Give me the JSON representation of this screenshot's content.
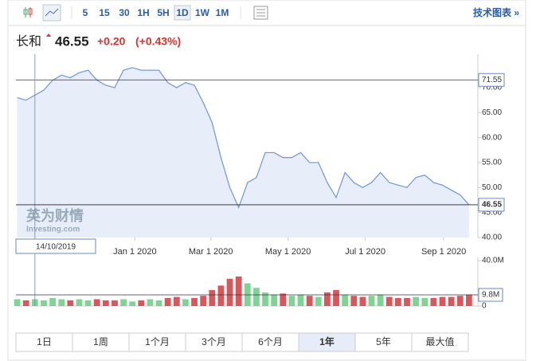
{
  "toolbar": {
    "intervals": [
      "5",
      "15",
      "30",
      "1H",
      "5H",
      "1D",
      "1W",
      "1M"
    ],
    "active": "1D",
    "tech_chart": "技术图表 »"
  },
  "header": {
    "name": "长和",
    "price": "46.55",
    "change": "+0.20",
    "change_pct": "(+0.43%)"
  },
  "watermark": {
    "cn": "英为财情",
    "en": "Investing.com"
  },
  "chart_data": [
    {
      "type": "line",
      "color": "#7a9bd3",
      "fill": "#e8eef9",
      "x": [
        "2019-09-30",
        "2019-10-07",
        "2019-10-14",
        "2019-10-21",
        "2019-10-28",
        "2019-11-04",
        "2019-11-11",
        "2019-11-18",
        "2019-11-25",
        "2019-12-02",
        "2019-12-09",
        "2019-12-16",
        "2019-12-23",
        "2019-12-30",
        "2020-01-06",
        "2020-01-13",
        "2020-01-20",
        "2020-01-27",
        "2020-02-03",
        "2020-02-10",
        "2020-02-17",
        "2020-02-24",
        "2020-03-02",
        "2020-03-09",
        "2020-03-16",
        "2020-03-23",
        "2020-03-30",
        "2020-04-06",
        "2020-04-13",
        "2020-04-20",
        "2020-04-27",
        "2020-05-04",
        "2020-05-11",
        "2020-05-18",
        "2020-05-25",
        "2020-06-01",
        "2020-06-08",
        "2020-06-15",
        "2020-06-22",
        "2020-06-29",
        "2020-07-06",
        "2020-07-13",
        "2020-07-20",
        "2020-07-27",
        "2020-08-03",
        "2020-08-10",
        "2020-08-17",
        "2020-08-24",
        "2020-08-31",
        "2020-09-07",
        "2020-09-14",
        "2020-09-21"
      ],
      "values": [
        68,
        67.5,
        68.5,
        69.5,
        71.5,
        72.5,
        72,
        73,
        73.5,
        71.5,
        70.5,
        70,
        73.5,
        74,
        73.5,
        73.5,
        73.5,
        71,
        70,
        71,
        70.5,
        67,
        63,
        56,
        50,
        46,
        51,
        52,
        57,
        57,
        56,
        56,
        57,
        55,
        55,
        51,
        48,
        53,
        51,
        50,
        51,
        53,
        51,
        50.5,
        50,
        52,
        52.5,
        51,
        50.5,
        49.5,
        48.5,
        46.55
      ],
      "xlim": [
        "2019-09-29",
        "2020-09-28"
      ],
      "xticks": [
        {
          "value": "2020-01-01",
          "label": "Jan 1 2020"
        },
        {
          "value": "2020-03-01",
          "label": "Mar 1 2020"
        },
        {
          "value": "2020-05-01",
          "label": "May 1 2020"
        },
        {
          "value": "2020-07-01",
          "label": "Jul 1 2020"
        },
        {
          "value": "2020-09-01",
          "label": "Sep 1 2020"
        }
      ],
      "ylim": [
        40,
        76.7
      ],
      "yticks": [
        {
          "value": 40,
          "label": "40.00"
        },
        {
          "value": 45,
          "label": "45.00"
        },
        {
          "value": 50,
          "label": "50.00"
        },
        {
          "value": 55,
          "label": "55.00"
        },
        {
          "value": 60,
          "label": "60.00"
        },
        {
          "value": 65,
          "label": "65.00"
        },
        {
          "value": 70,
          "label": "70.00"
        }
      ],
      "last_price": 46.55,
      "crosshair": {
        "price": {
          "value": 71.55,
          "label": "71.55"
        },
        "date": {
          "value": "2019-10-14",
          "label": "14/10/2019"
        }
      }
    },
    {
      "type": "bar",
      "up_color": "#7fd494",
      "down_color": "#d9575a",
      "x": [
        "2019-09-30",
        "2019-10-07",
        "2019-10-14",
        "2019-10-21",
        "2019-10-28",
        "2019-11-04",
        "2019-11-11",
        "2019-11-18",
        "2019-11-25",
        "2019-12-02",
        "2019-12-09",
        "2019-12-16",
        "2019-12-23",
        "2019-12-30",
        "2020-01-06",
        "2020-01-13",
        "2020-01-20",
        "2020-01-27",
        "2020-02-03",
        "2020-02-10",
        "2020-02-17",
        "2020-02-24",
        "2020-03-02",
        "2020-03-09",
        "2020-03-16",
        "2020-03-23",
        "2020-03-30",
        "2020-04-06",
        "2020-04-13",
        "2020-04-20",
        "2020-04-27",
        "2020-05-04",
        "2020-05-11",
        "2020-05-18",
        "2020-05-25",
        "2020-06-01",
        "2020-06-08",
        "2020-06-15",
        "2020-06-22",
        "2020-06-29",
        "2020-07-06",
        "2020-07-13",
        "2020-07-20",
        "2020-07-27",
        "2020-08-03",
        "2020-08-10",
        "2020-08-17",
        "2020-08-24",
        "2020-08-31",
        "2020-09-07",
        "2020-09-14",
        "2020-09-21"
      ],
      "values": [
        6000000,
        5000000,
        6000000,
        5000000,
        7000000,
        6000000,
        5000000,
        6000000,
        5000000,
        6000000,
        5000000,
        5000000,
        6000000,
        4000000,
        5000000,
        6000000,
        5000000,
        7000000,
        8000000,
        6000000,
        7000000,
        9000000,
        14000000,
        18000000,
        24000000,
        26000000,
        20000000,
        16000000,
        12000000,
        10000000,
        11000000,
        9000000,
        10000000,
        9000000,
        8000000,
        12000000,
        14000000,
        10000000,
        9000000,
        8000000,
        9000000,
        10000000,
        8000000,
        7000000,
        7000000,
        8000000,
        7000000,
        7000000,
        8000000,
        8000000,
        9000000,
        10000000
      ],
      "xlim": [
        "2019-09-29",
        "2020-09-28"
      ],
      "ylim": [
        0,
        40000000
      ],
      "yticks": [
        0,
        {
          "value": 40000000,
          "label": "40.0M"
        }
      ],
      "crosshair": {
        "volume": {
          "value": 9800000,
          "label": "9.8M"
        }
      }
    }
  ],
  "ranges": [
    "1日",
    "1周",
    "1个月",
    "3个月",
    "6个月",
    "1年",
    "5年",
    "最大值"
  ],
  "active_range": "1年"
}
